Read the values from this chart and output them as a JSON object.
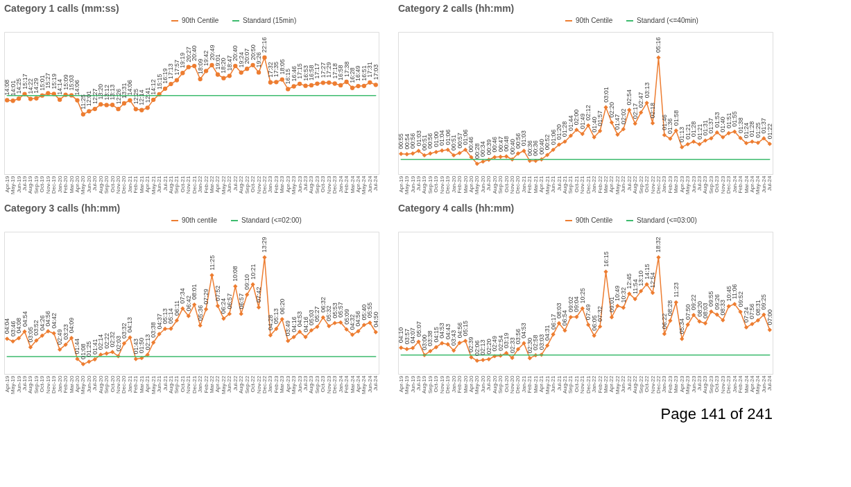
{
  "chart_data": [
    {
      "type": "line",
      "title": "Category 1 calls (mm:ss)",
      "legend": "top right",
      "marker": "circle",
      "categories": [
        "Apr-19",
        "May-19",
        "Jun-19",
        "Jul-19",
        "Aug-19",
        "Sep-19",
        "Oct-19",
        "Nov-19",
        "Dec-19",
        "Jan-20",
        "Feb-20",
        "Mar-20",
        "Apr-20",
        "May-20",
        "Jun-20",
        "Jul-20",
        "Aug-20",
        "Sep-20",
        "Oct-20",
        "Nov-20",
        "Dec-20",
        "Jan-21",
        "Feb-21",
        "Mar-21",
        "Apr-21",
        "May-21",
        "Jun-21",
        "Jul-21",
        "Aug-21",
        "Sep-21",
        "Oct-21",
        "Nov-21",
        "Dec-21",
        "Jan-22",
        "Feb-22",
        "Mar-22",
        "Apr-22",
        "May-22",
        "Jun-22",
        "Jul-22",
        "Aug-22",
        "Sep-22",
        "Oct-22",
        "Nov-22",
        "Dec-22",
        "Jan-23",
        "Feb-23",
        "Mar-23",
        "Apr-23",
        "May-23",
        "Jun-23",
        "Jul-23",
        "Aug-23",
        "Sep-23",
        "Oct-23",
        "Nov-23",
        "Dec-23",
        "Jan-24",
        "Feb-24",
        "Mar-24",
        "Apr-24",
        "May-24",
        "Jun-24",
        "Jul-24"
      ],
      "series": [
        {
          "name": "90th Centile",
          "color": "#ed7d31",
          "values": [
            14.13,
            14.02,
            14.42,
            15.28,
            14.37,
            14.48,
            15.02,
            15.45,
            15.32,
            14.23,
            15.15,
            15.05,
            14.1,
            11.42,
            12.02,
            12.45,
            13.33,
            13.2,
            13.22,
            12.43,
            13.52,
            14.1,
            12.42,
            12.23,
            12.68,
            14.2,
            15.25,
            16.32,
            17.22,
            17.95,
            19.32,
            20.45,
            20.67,
            18.15,
            19.7,
            20.82,
            19.02,
            18.33,
            18.78,
            20.67,
            19.4,
            20.12,
            20.83,
            19.43,
            22.27,
            17.53,
            17.58,
            18.08,
            16.25,
            16.77,
            17.25,
            16.88,
            16.97,
            17.28,
            17.45,
            17.48,
            17.3,
            16.97,
            17.63,
            16.47,
            16.82,
            16.85,
            17.52,
            17.05
          ],
          "value_labels": [
            "14:08",
            "14:01",
            "14:25",
            "15:17",
            "14:22",
            "14:29",
            "15:01",
            "15:27",
            "15:19",
            "14:14",
            "15:09",
            "15:03",
            "14:06",
            "11:25",
            "12:01",
            "12:27",
            "13:20",
            "13:12",
            "13:13",
            "12:26",
            "13:31",
            "14:06",
            "12:25",
            "12:14",
            "12:41",
            "14:12",
            "15:15",
            "16:19",
            "17:13",
            "17:57",
            "19:19",
            "20:27",
            "20:40",
            "18:09",
            "19:42",
            "20:49",
            "19:01",
            "18:20",
            "18:47",
            "20:40",
            "19:24",
            "20:07",
            "20:50",
            "19:26",
            "22:16",
            "17:32",
            "17:35",
            "18:05",
            "16:15",
            "16:46",
            "17:15",
            "16:53",
            "16:58",
            "17:17",
            "17:27",
            "17:29",
            "17:18",
            "16:58",
            "17:38",
            "16:28",
            "16:49",
            "16:51",
            "17:31",
            "17:03"
          ]
        },
        {
          "name": "Standard (15min)",
          "color": "#3dbb6e",
          "marker": "none",
          "values": [
            15,
            15,
            15,
            15,
            15,
            15,
            15,
            15,
            15,
            15,
            15,
            15,
            15,
            15,
            15,
            15,
            15,
            15,
            15,
            15,
            15,
            15,
            15,
            15,
            15,
            15,
            15,
            15,
            15,
            15,
            15,
            15,
            15,
            15,
            15,
            15,
            15,
            15,
            15,
            15,
            15,
            15,
            15,
            15,
            15,
            15,
            15,
            15,
            15,
            15,
            15,
            15,
            15,
            15,
            15,
            15,
            15,
            15,
            15,
            15,
            15,
            15,
            15,
            15
          ]
        }
      ]
    },
    {
      "type": "line",
      "title": "Category 2 calls (hh:mm)",
      "legend": "top right",
      "marker": "diamond",
      "categories": [
        "Apr-19",
        "May-19",
        "Jun-19",
        "Jul-19",
        "Aug-19",
        "Sep-19",
        "Oct-19",
        "Nov-19",
        "Dec-19",
        "Jan-20",
        "Feb-20",
        "Mar-20",
        "Apr-20",
        "May-20",
        "Jun-20",
        "Jul-20",
        "Aug-20",
        "Sep-20",
        "Oct-20",
        "Nov-20",
        "Dec-20",
        "Jan-21",
        "Feb-21",
        "Mar-21",
        "Apr-21",
        "May-21",
        "Jun-21",
        "Jul-21",
        "Aug-21",
        "Sep-21",
        "Oct-21",
        "Nov-21",
        "Dec-21",
        "Jan-22",
        "Feb-22",
        "Mar-22",
        "Apr-22",
        "May-22",
        "Jun-22",
        "Jul-22",
        "Aug-22",
        "Sep-22",
        "Oct-22",
        "Nov-22",
        "Dec-22",
        "Jan-23",
        "Feb-23",
        "Mar-23",
        "Apr-23",
        "May-23",
        "Jun-23",
        "Jul-23",
        "Aug-23",
        "Sep-23",
        "Oct-23",
        "Nov-23",
        "Dec-23",
        "Jan-24",
        "Feb-24",
        "Mar-24",
        "Apr-24",
        "May-24",
        "Jun-24",
        "Jul-24"
      ],
      "series": [
        {
          "name": "90th Centile",
          "color": "#ed7d31",
          "values": [
            55,
            54,
            56,
            63,
            51,
            56,
            60,
            64,
            66,
            51,
            57,
            66,
            46,
            28,
            34,
            39,
            46,
            47,
            48,
            40,
            56,
            63,
            36,
            36,
            40,
            52,
            66,
            80,
            88,
            104,
            120,
            109,
            132,
            100,
            117,
            181,
            140,
            107,
            122,
            174,
            137,
            167,
            193,
            138,
            316,
            106,
            96,
            118,
            73,
            81,
            88,
            81,
            91,
            97,
            113,
            100,
            111,
            115,
            98,
            84,
            88,
            85,
            97,
            82
          ],
          "value_labels": [
            "00:55",
            "00:54",
            "00:56",
            "01:03",
            "00:51",
            "00:56",
            "01:00",
            "01:04",
            "01:06",
            "00:51",
            "00:57",
            "01:06",
            "00:46",
            "00:28",
            "00:34",
            "00:39",
            "00:46",
            "00:47",
            "00:48",
            "00:40",
            "00:56",
            "01:03",
            "00:36",
            "00:36",
            "00:40",
            "00:52",
            "01:06",
            "01:20",
            "01:28",
            "01:44",
            "02:00",
            "01:49",
            "02:12",
            "01:40",
            "01:57",
            "03:01",
            "02:20",
            "01:47",
            "02:02",
            "02:54",
            "02:17",
            "02:47",
            "03:13",
            "02:18",
            "05:16",
            "01:46",
            "01:36",
            "01:58",
            "01:13",
            "01:21",
            "01:28",
            "01:21",
            "01:31",
            "01:37",
            "01:53",
            "01:40",
            "01:51",
            "01:55",
            "01:38",
            "01:24",
            "01:28",
            "01:25",
            "01:37",
            "01:22"
          ]
        },
        {
          "name": "Standard (<=40min)",
          "color": "#3dbb6e",
          "marker": "none",
          "values": [
            40,
            40,
            40,
            40,
            40,
            40,
            40,
            40,
            40,
            40,
            40,
            40,
            40,
            40,
            40,
            40,
            40,
            40,
            40,
            40,
            40,
            40,
            40,
            40,
            40,
            40,
            40,
            40,
            40,
            40,
            40,
            40,
            40,
            40,
            40,
            40,
            40,
            40,
            40,
            40,
            40,
            40,
            40,
            40,
            40,
            40,
            40,
            40,
            40,
            40,
            40,
            40,
            40,
            40,
            40,
            40,
            40,
            40,
            40,
            40,
            40,
            40,
            40,
            40
          ]
        }
      ]
    },
    {
      "type": "line",
      "title": "Category 3 calls (hh:mm)",
      "legend": "top right",
      "marker": "diamond",
      "categories": [
        "Apr-19",
        "May-19",
        "Jun-19",
        "Jul-19",
        "Aug-19",
        "Sep-19",
        "Oct-19",
        "Nov-19",
        "Dec-19",
        "Jan-20",
        "Feb-20",
        "Mar-20",
        "Apr-20",
        "May-20",
        "Jun-20",
        "Jul-20",
        "Aug-20",
        "Sep-20",
        "Oct-20",
        "Nov-20",
        "Dec-20",
        "Jan-21",
        "Feb-21",
        "Mar-21",
        "Apr-21",
        "May-21",
        "Jun-21",
        "Jul-21",
        "Aug-21",
        "Sep-21",
        "Oct-21",
        "Nov-21",
        "Dec-21",
        "Jan-22",
        "Feb-22",
        "Mar-22",
        "Apr-22",
        "May-22",
        "Jun-22",
        "Jul-22",
        "Aug-22",
        "Sep-22",
        "Oct-22",
        "Nov-22",
        "Dec-22",
        "Jan-23",
        "Feb-23",
        "Mar-23",
        "Apr-23",
        "May-23",
        "Jun-23",
        "Jul-23",
        "Aug-23",
        "Sep-23",
        "Oct-23",
        "Nov-23",
        "Dec-23",
        "Jan-24",
        "Feb-24",
        "Mar-24",
        "Apr-24",
        "May-24",
        "Jun-24",
        "Jul-24"
      ],
      "series": [
        {
          "name": "90th centile",
          "color": "#ed7d31",
          "values": [
            244,
            226,
            248,
            294,
            185,
            232,
            266,
            296,
            282,
            169,
            203,
            249,
            104,
            68,
            85,
            101,
            134,
            142,
            152,
            123,
            212,
            253,
            103,
            110,
            133,
            218,
            277,
            313,
            314,
            371,
            454,
            402,
            481,
            336,
            449,
            685,
            472,
            384,
            417,
            608,
            417,
            550,
            621,
            462,
            809,
            268,
            313,
            380,
            229,
            256,
            293,
            256,
            303,
            327,
            392,
            332,
            353,
            357,
            309,
            272,
            296,
            340,
            355,
            290
          ],
          "value_labels": [
            "04:04",
            "03:46",
            "04:08",
            "04:54",
            "03:05",
            "03:52",
            "04:26",
            "04:56",
            "04:42",
            "02:49",
            "03:23",
            "04:09",
            "01:44",
            "01:08",
            "01:25",
            "01:41",
            "02:14",
            "02:22",
            "02:32",
            "02:03",
            "03:32",
            "04:13",
            "01:43",
            "01:50",
            "02:13",
            "03:38",
            "04:37",
            "05:13",
            "05:14",
            "06:11",
            "07:34",
            "06:42",
            "08:01",
            "05:36",
            "07:29",
            "11:25",
            "07:52",
            "06:24",
            "06:57",
            "10:08",
            "06:57",
            "09:10",
            "10:21",
            "07:42",
            "13:29",
            "04:28",
            "05:13",
            "06:20",
            "03:49",
            "04:16",
            "04:53",
            "04:16",
            "05:03",
            "05:27",
            "06:32",
            "05:32",
            "05:53",
            "05:57",
            "05:09",
            "04:32",
            "04:56",
            "05:40",
            "05:55",
            "04:50"
          ]
        },
        {
          "name": "Standard (<=02:00)",
          "color": "#3dbb6e",
          "marker": "none",
          "values": [
            120,
            120,
            120,
            120,
            120,
            120,
            120,
            120,
            120,
            120,
            120,
            120,
            120,
            120,
            120,
            120,
            120,
            120,
            120,
            120,
            120,
            120,
            120,
            120,
            120,
            120,
            120,
            120,
            120,
            120,
            120,
            120,
            120,
            120,
            120,
            120,
            120,
            120,
            120,
            120,
            120,
            120,
            120,
            120,
            120,
            120,
            120,
            120,
            120,
            120,
            120,
            120,
            120,
            120,
            120,
            120,
            120,
            120,
            120,
            120,
            120,
            120,
            120,
            120
          ]
        }
      ]
    },
    {
      "type": "line",
      "title": "Category 4 calls (hh:mm)",
      "legend": "top right",
      "marker": "diamond",
      "annotations": [
        "Page 141 of 241"
      ],
      "categories": [
        "Apr-19",
        "May-19",
        "Jun-19",
        "Jul-19",
        "Aug-19",
        "Sep-19",
        "Oct-19",
        "Nov-19",
        "Dec-19",
        "Jan-20",
        "Feb-20",
        "Mar-20",
        "Apr-20",
        "May-20",
        "Jun-20",
        "Jul-20",
        "Aug-20",
        "Sep-20",
        "Oct-20",
        "Nov-20",
        "Dec-20",
        "Jan-21",
        "Feb-21",
        "Mar-21",
        "Apr-21",
        "May-21",
        "Jun-21",
        "Jul-21",
        "Aug-21",
        "Sep-21",
        "Oct-21",
        "Nov-21",
        "Dec-21",
        "Jan-22",
        "Feb-22",
        "Mar-22",
        "Apr-22",
        "May-22",
        "Jun-22",
        "Jul-22",
        "Aug-22",
        "Sep-22",
        "Oct-22",
        "Nov-22",
        "Dec-22",
        "Jan-23",
        "Feb-23",
        "Mar-23",
        "Apr-23",
        "May-23",
        "Jun-23",
        "Jul-23",
        "Aug-23",
        "Sep-23",
        "Oct-23",
        "Nov-23",
        "Dec-23",
        "Jan-24",
        "Feb-24",
        "Mar-24",
        "Apr-24",
        "May-24",
        "Jun-24",
        "Jul-24"
      ],
      "series": [
        {
          "name": "90th Centile",
          "color": "#ed7d31",
          "values": [
            250,
            237,
            247,
            307,
            180,
            218,
            255,
            293,
            283,
            223,
            296,
            315,
            159,
            126,
            133,
            140,
            169,
            174,
            199,
            153,
            236,
            293,
            150,
            178,
            183,
            271,
            377,
            483,
            414,
            542,
            544,
            625,
            469,
            365,
            452,
            975,
            541,
            649,
            632,
            765,
            714,
            790,
            855,
            774,
            1112,
            382,
            508,
            683,
            334,
            470,
            562,
            500,
            483,
            595,
            566,
            513,
            645,
            666,
            592,
            444,
            476,
            511,
            565,
            420
          ],
          "value_labels": [
            "04:10",
            "03:57",
            "04:07",
            "05:07",
            "03:00",
            "03:38",
            "04:15",
            "04:53",
            "04:43",
            "03:43",
            "04:56",
            "05:15",
            "02:39",
            "02:06",
            "02:13",
            "02:20",
            "02:49",
            "02:54",
            "03:19",
            "02:33",
            "03:56",
            "04:53",
            "02:30",
            "02:58",
            "03:03",
            "04:31",
            "06:17",
            "08:03",
            "06:54",
            "09:02",
            "09:04",
            "10:25",
            "07:49",
            "06:05",
            "07:32",
            "16:15",
            "09:01",
            "10:49",
            "10:32",
            "12:45",
            "11:54",
            "13:10",
            "14:15",
            "12:54",
            "18:32",
            "06:22",
            "08:28",
            "11:23",
            "05:34",
            "07:50",
            "09:22",
            "08:20",
            "08:03",
            "09:55",
            "09:26",
            "08:33",
            "10:45",
            "11:06",
            "09:52",
            "07:24",
            "07:56",
            "08:31",
            "09:25",
            "07:00"
          ]
        },
        {
          "name": "Standard (<=03:00)",
          "color": "#3dbb6e",
          "marker": "none",
          "values": [
            180,
            180,
            180,
            180,
            180,
            180,
            180,
            180,
            180,
            180,
            180,
            180,
            180,
            180,
            180,
            180,
            180,
            180,
            180,
            180,
            180,
            180,
            180,
            180,
            180,
            180,
            180,
            180,
            180,
            180,
            180,
            180,
            180,
            180,
            180,
            180,
            180,
            180,
            180,
            180,
            180,
            180,
            180,
            180,
            180,
            180,
            180,
            180,
            180,
            180,
            180,
            180,
            180,
            180,
            180,
            180,
            180,
            180,
            180,
            180,
            180,
            180,
            180,
            180
          ]
        }
      ]
    }
  ]
}
